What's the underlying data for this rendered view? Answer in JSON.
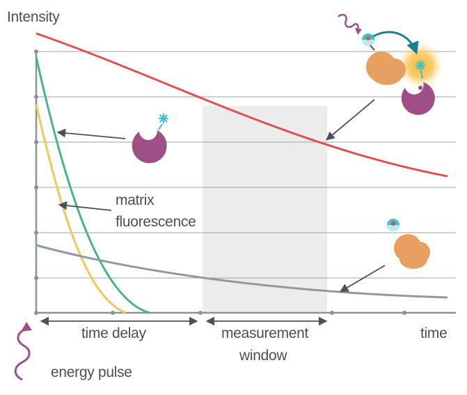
{
  "axis": {
    "y_label": "Intensity",
    "x_label": "time"
  },
  "annotations": {
    "matrix_line1": "matrix",
    "matrix_line2": "fluorescence",
    "time_delay": "time delay",
    "measurement_line1": "measurement",
    "measurement_line2": "window",
    "energy_pulse": "energy pulse"
  },
  "colors": {
    "long_lifetime_signal": "#e05050",
    "background_decay": "#8f9a9c",
    "short_decay_green": "#4bb38c",
    "short_decay_yellow": "#f2c75c",
    "measurement_window": "#ececec",
    "protein": "#e8a062",
    "fluorophore": "#9e4f86",
    "label_star": "#3dbfcc",
    "energy_pulse": "#9e4f86",
    "glow": "#f6c142",
    "axis": "#8a9496"
  },
  "icons": [
    "energy-pulse-wave-icon",
    "fluorophore-label-icon",
    "protein-complex-icon",
    "donor-protein-icon",
    "star-marker-icon"
  ]
}
